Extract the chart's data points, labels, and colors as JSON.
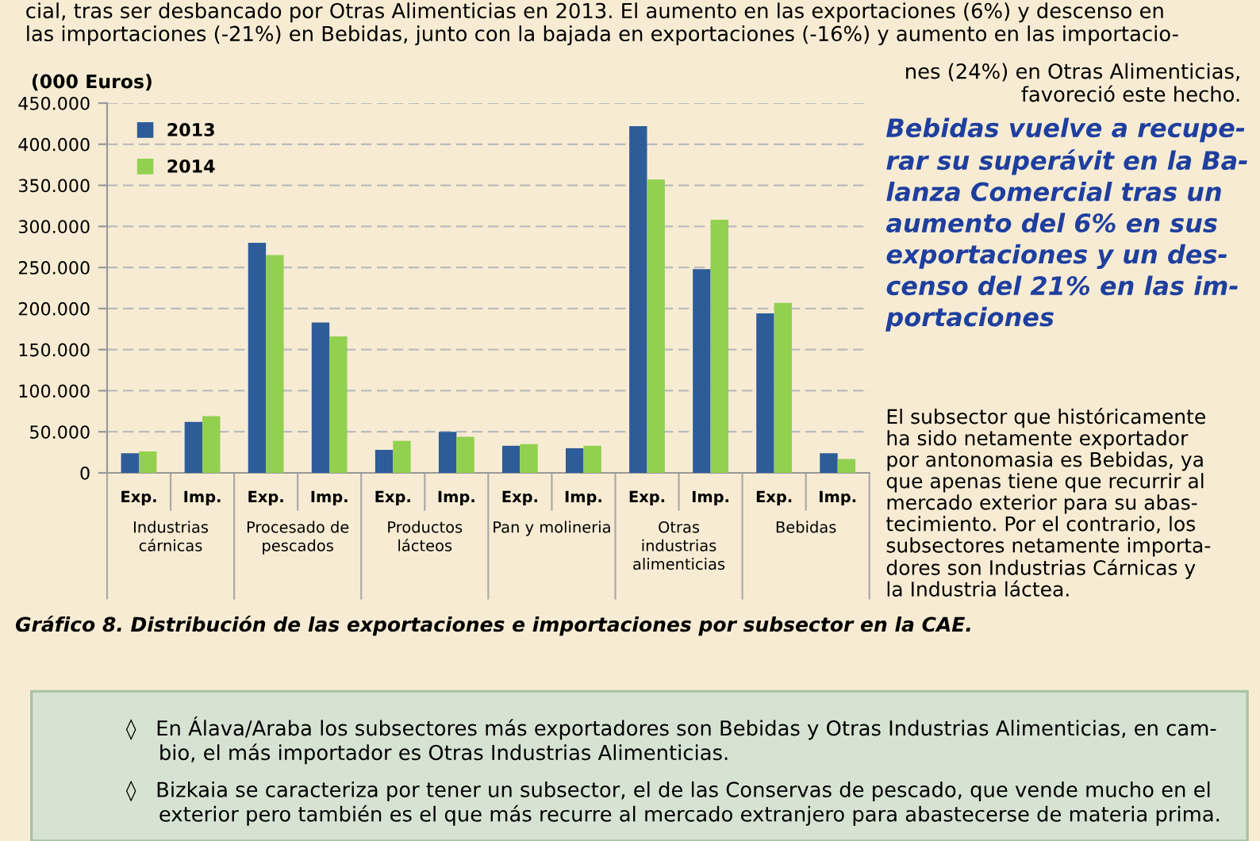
{
  "chart_data": {
    "type": "bar",
    "title": "Gráfico 8. Distribución de las exportaciones e importaciones por subsector en la CAE.",
    "ylabel": "(000 Euros)",
    "categories": [
      "Exp.",
      "Imp.",
      "Exp.",
      "Imp.",
      "Exp.",
      "Imp.",
      "Exp.",
      "Imp.",
      "Exp.",
      "Imp.",
      "Exp.",
      "Imp."
    ],
    "series": [
      {
        "name": "2013",
        "color": "#2e5c99",
        "values": [
          24000,
          62000,
          280000,
          183000,
          28000,
          50000,
          33000,
          30000,
          422000,
          248000,
          194000,
          24000
        ]
      },
      {
        "name": "2014",
        "color": "#92d050",
        "values": [
          26000,
          69000,
          265000,
          166000,
          39000,
          44000,
          35000,
          33000,
          357000,
          308000,
          207000,
          17000
        ]
      }
    ],
    "ylim": [
      0,
      450000
    ],
    "yticks": [
      {
        "value": 0,
        "label": "0"
      },
      {
        "value": 50000,
        "label": "50.000"
      },
      {
        "value": 100000,
        "label": "100.000"
      },
      {
        "value": 150000,
        "label": "150.000"
      },
      {
        "value": 200000,
        "label": "200.000"
      },
      {
        "value": 250000,
        "label": "250.000"
      },
      {
        "value": 300000,
        "label": "300.000"
      },
      {
        "value": 350000,
        "label": "350.000"
      },
      {
        "value": 400000,
        "label": "400.000"
      },
      {
        "value": 450000,
        "label": "450.000"
      }
    ],
    "grid": "y",
    "legend": "top left",
    "annotations": [
      "Industrias\ncárnicas",
      "Procesado de\npescados",
      "Productos\nlácteos",
      "Pan y molineria",
      "Otras\nindustrias\nalimenticias",
      "Bebidas",
      "cial, tras ser desbancado por Otras Alimenticias en 2013. El aumento en las exportaciones (6%) y descenso en\nlas importaciones (-21%) en Bebidas, junto con la bajada en exportaciones (-16%) y aumento en las importacio-",
      "nes (24%) en Otras Alimenticias,\nfavoreció este hecho.",
      "Bebidas vuelve a recupe-\nrar su superávit en la Ba-\nlanza Comercial tras un\naumento del 6% en sus\nexportaciones y un des-\ncenso del 21% en las im-\nportaciones",
      "El subsector que históricamente\nha sido netamente exportador\npor antonomasia es Bebidas, ya\nque apenas tiene que recurrir al\nmercado exterior para su abas-\ntecimiento. Por el contrario, los\nsubsectores netamente importa-\ndores son Industrias Cárnicas y\nla Industria láctea.",
      "◊   En Álava/Araba los subsectores más exportadores son Bebidas y Otras Industrias Alimenticias, en cam-\n     bio, el más importador es Otras Industrias Alimenticias.",
      "◊   Bizkaia se caracteriza por tener un subsector, el de las Conservas de pescado, que vende mucho en el\n     exterior pero también es el que más recurre al mercado extranjero para abastecerse de materia prima."
    ]
  }
}
